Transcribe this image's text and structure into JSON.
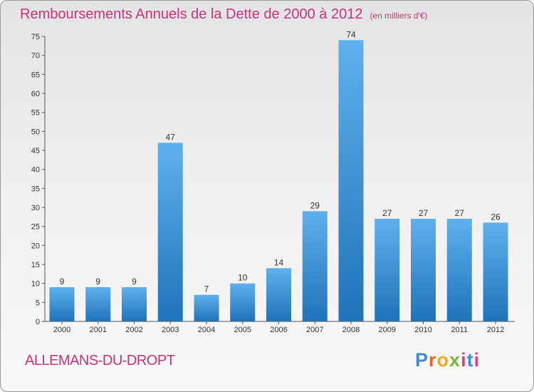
{
  "header": {
    "title": "Remboursements Annuels de la Dette de 2000 à 2012",
    "unit_note": "(en milliers d'€)"
  },
  "footer": {
    "commune": "ALLEMANS-DU-DROPT",
    "logo": "Proxiti"
  },
  "colors": {
    "bar_light": "#5fb0ec",
    "bar_dark": "#1f73b9",
    "title": "#c8327a"
  },
  "chart_data": {
    "type": "bar",
    "title": "Remboursements Annuels de la Dette de 2000 à 2012",
    "ylabel": "en milliers d'€",
    "xlabel": "",
    "categories": [
      "2000",
      "2001",
      "2002",
      "2003",
      "2004",
      "2005",
      "2006",
      "2007",
      "2008",
      "2009",
      "2010",
      "2011",
      "2012"
    ],
    "values": [
      9,
      9,
      9,
      47,
      7,
      10,
      14,
      29,
      74,
      27,
      27,
      27,
      26
    ],
    "ylim": [
      0,
      75
    ],
    "yticks": [
      0,
      5,
      10,
      15,
      20,
      25,
      30,
      35,
      40,
      45,
      50,
      55,
      60,
      65,
      70,
      75
    ],
    "grid": false,
    "legend": "none"
  }
}
